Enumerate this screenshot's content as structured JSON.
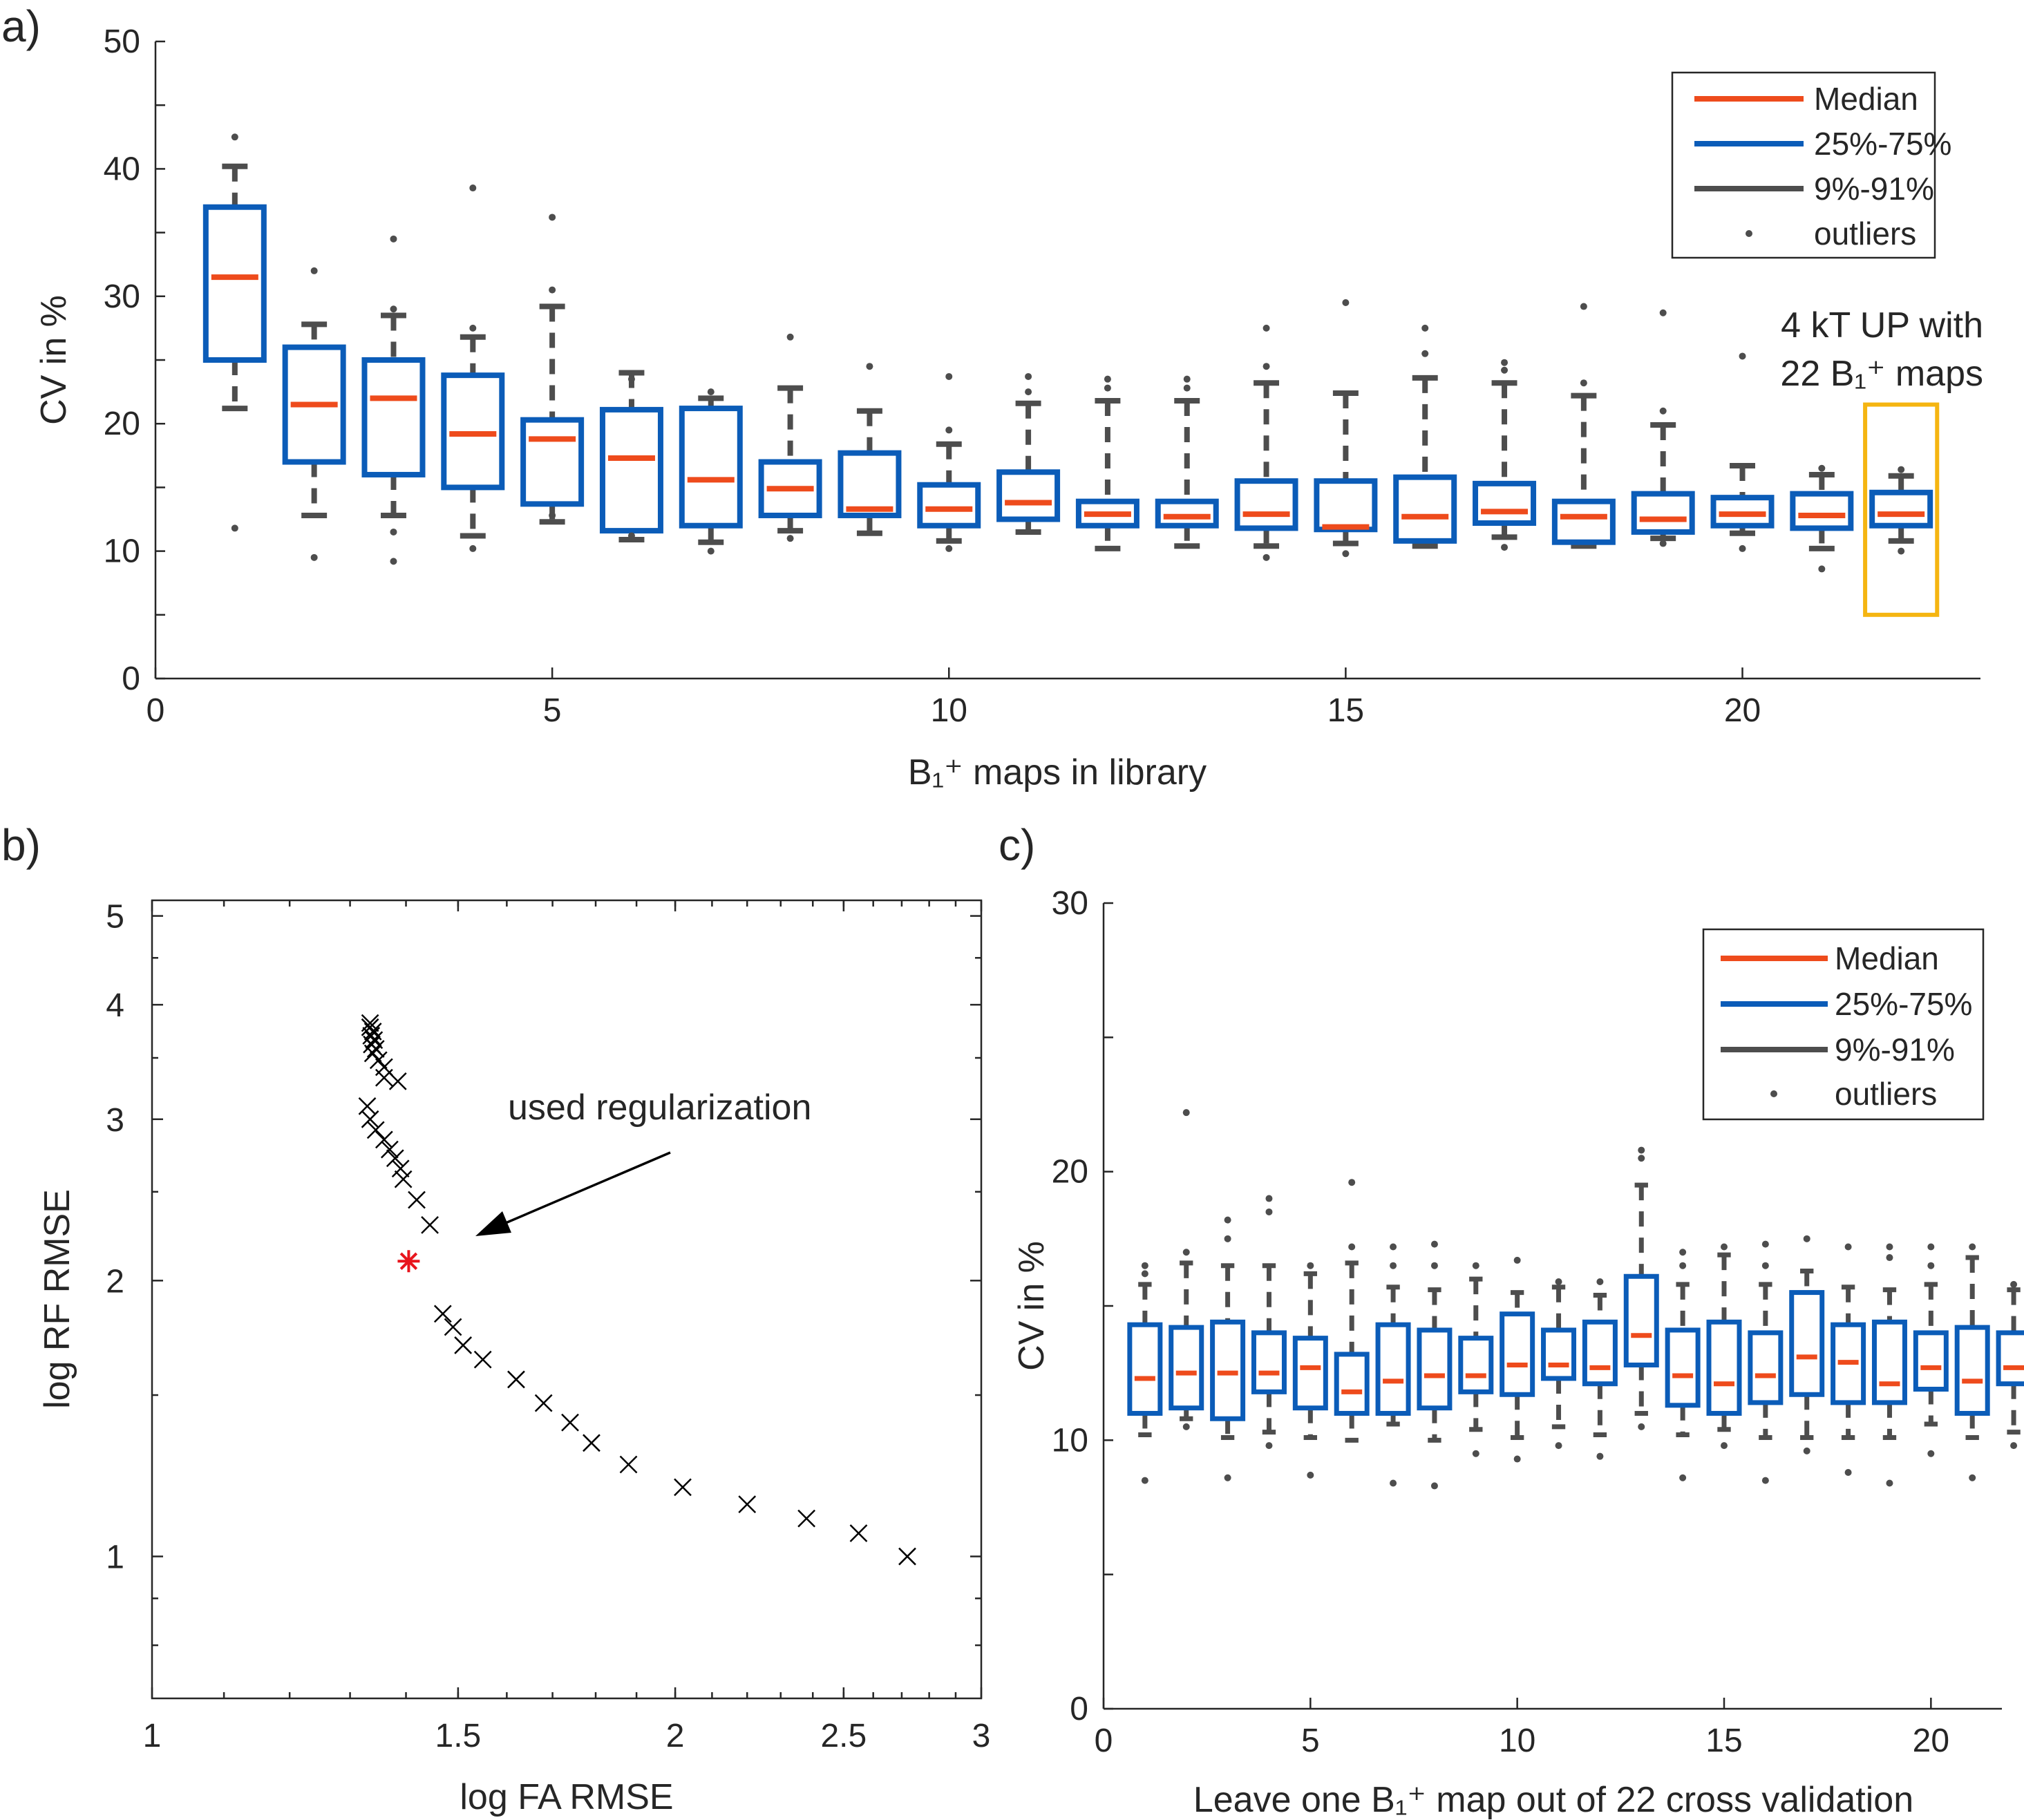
{
  "colors": {
    "median": "#ee4b1c",
    "box": "#0b5cb8",
    "whisker": "#4d4d4d",
    "outlier": "#4d4d4d",
    "highlight": "#f5b511",
    "marker": "#000000",
    "selected": "#e8141c",
    "axis": "#262626"
  },
  "chart_data": [
    {
      "panel": "a)",
      "type": "box",
      "xlabel": "B₁⁺ maps in library",
      "ylabel": "CV in %",
      "xlim": [
        0,
        23
      ],
      "ylim": [
        0,
        50
      ],
      "xticks": [
        0,
        5,
        10,
        15,
        20
      ],
      "yticks": [
        0,
        10,
        20,
        30,
        40,
        50
      ],
      "legend": {
        "position": "top-right",
        "entries": [
          "Median",
          "25%-75%",
          "9%-91%",
          "outliers"
        ]
      },
      "annotation": {
        "text": [
          "4 kT UP with",
          "22 B₁⁺ maps"
        ],
        "highlight_x": 22,
        "highlight_range": [
          5,
          21.5
        ]
      },
      "boxes": [
        {
          "x": 1,
          "q1": 25,
          "median": 31.5,
          "q3": 37,
          "w_low": 21.2,
          "w_high": 40.2,
          "outliers": [
            11.8,
            42.5
          ]
        },
        {
          "x": 2,
          "q1": 17,
          "median": 21.5,
          "q3": 26,
          "w_low": 12.8,
          "w_high": 27.8,
          "outliers": [
            9.5,
            32
          ]
        },
        {
          "x": 3,
          "q1": 16,
          "median": 22,
          "q3": 25,
          "w_low": 12.8,
          "w_high": 28.5,
          "outliers": [
            9.2,
            11.5,
            29,
            34.5
          ]
        },
        {
          "x": 4,
          "q1": 15,
          "median": 19.2,
          "q3": 23.8,
          "w_low": 11.2,
          "w_high": 26.8,
          "outliers": [
            10.2,
            27.5,
            38.5
          ]
        },
        {
          "x": 5,
          "q1": 13.7,
          "median": 18.8,
          "q3": 20.3,
          "w_low": 12.3,
          "w_high": 29.2,
          "outliers": [
            12.8,
            30.5,
            36.2
          ]
        },
        {
          "x": 6,
          "q1": 11.6,
          "median": 17.3,
          "q3": 21.1,
          "w_low": 10.9,
          "w_high": 24,
          "outliers": [
            11.2,
            23.5
          ]
        },
        {
          "x": 7,
          "q1": 12,
          "median": 15.6,
          "q3": 21.2,
          "w_low": 10.7,
          "w_high": 22,
          "outliers": [
            10,
            22.5
          ]
        },
        {
          "x": 8,
          "q1": 12.8,
          "median": 14.9,
          "q3": 17,
          "w_low": 11.6,
          "w_high": 22.8,
          "outliers": [
            11,
            26.8
          ]
        },
        {
          "x": 9,
          "q1": 12.8,
          "median": 13.3,
          "q3": 17.7,
          "w_low": 11.4,
          "w_high": 21,
          "outliers": [
            24.5
          ]
        },
        {
          "x": 10,
          "q1": 12,
          "median": 13.3,
          "q3": 15.2,
          "w_low": 10.8,
          "w_high": 18.4,
          "outliers": [
            10.2,
            19.5,
            23.7
          ]
        },
        {
          "x": 11,
          "q1": 12.5,
          "median": 13.8,
          "q3": 16.2,
          "w_low": 11.5,
          "w_high": 21.6,
          "outliers": [
            22.5,
            23.7
          ]
        },
        {
          "x": 12,
          "q1": 12,
          "median": 12.9,
          "q3": 13.9,
          "w_low": 10.2,
          "w_high": 21.8,
          "outliers": [
            22.8,
            23.5
          ]
        },
        {
          "x": 13,
          "q1": 12,
          "median": 12.7,
          "q3": 13.9,
          "w_low": 10.4,
          "w_high": 21.8,
          "outliers": [
            22.8,
            23.5
          ]
        },
        {
          "x": 14,
          "q1": 11.8,
          "median": 12.9,
          "q3": 15.5,
          "w_low": 10.4,
          "w_high": 23.2,
          "outliers": [
            9.5,
            24.5,
            27.5
          ]
        },
        {
          "x": 15,
          "q1": 11.7,
          "median": 11.9,
          "q3": 15.5,
          "w_low": 10.6,
          "w_high": 22.4,
          "outliers": [
            9.8,
            29.5
          ]
        },
        {
          "x": 16,
          "q1": 10.8,
          "median": 12.7,
          "q3": 15.8,
          "w_low": 10.4,
          "w_high": 23.6,
          "outliers": [
            25.5,
            27.5
          ]
        },
        {
          "x": 17,
          "q1": 12.2,
          "median": 13.1,
          "q3": 15.3,
          "w_low": 11.1,
          "w_high": 23.2,
          "outliers": [
            10.3,
            24.2,
            24.8
          ]
        },
        {
          "x": 18,
          "q1": 10.7,
          "median": 12.7,
          "q3": 13.9,
          "w_low": 10.4,
          "w_high": 22.2,
          "outliers": [
            23.2,
            29.2
          ]
        },
        {
          "x": 19,
          "q1": 11.5,
          "median": 12.5,
          "q3": 14.5,
          "w_low": 11,
          "w_high": 19.9,
          "outliers": [
            10.6,
            21,
            28.7
          ]
        },
        {
          "x": 20,
          "q1": 12,
          "median": 12.9,
          "q3": 14.2,
          "w_low": 11.4,
          "w_high": 16.7,
          "outliers": [
            10.2,
            25.3
          ]
        },
        {
          "x": 21,
          "q1": 11.8,
          "median": 12.8,
          "q3": 14.5,
          "w_low": 10.2,
          "w_high": 16,
          "outliers": [
            8.6,
            16.5
          ]
        },
        {
          "x": 22,
          "q1": 12,
          "median": 12.9,
          "q3": 14.6,
          "w_low": 10.8,
          "w_high": 15.9,
          "outliers": [
            10,
            16.4
          ]
        }
      ]
    },
    {
      "panel": "b)",
      "type": "scatter",
      "xscale": "log",
      "yscale": "log",
      "xlabel": "log FA RMSE",
      "ylabel": "log RF RMSE",
      "xlim": [
        1,
        3
      ],
      "ylim": [
        0.7,
        5.2
      ],
      "xticks": [
        1,
        1.5,
        2,
        2.5,
        3
      ],
      "xtick_labels": [
        "1",
        "1.5",
        "2",
        "2.5",
        "3"
      ],
      "yticks": [
        1,
        2,
        3,
        4,
        5
      ],
      "ytick_labels": [
        "1",
        "2",
        "3",
        "4",
        "5"
      ],
      "annotation": {
        "text": "used regularization",
        "arrow_to": [
          1.54,
          2.22
        ]
      },
      "selected_point": {
        "x": 1.405,
        "y": 2.1
      },
      "points": [
        [
          1.335,
          3.82
        ],
        [
          1.335,
          3.78
        ],
        [
          1.34,
          3.74
        ],
        [
          1.337,
          3.7
        ],
        [
          1.342,
          3.66
        ],
        [
          1.338,
          3.62
        ],
        [
          1.345,
          3.58
        ],
        [
          1.34,
          3.54
        ],
        [
          1.35,
          3.48
        ],
        [
          1.36,
          3.42
        ],
        [
          1.36,
          3.33
        ],
        [
          1.385,
          3.3
        ],
        [
          1.33,
          3.1
        ],
        [
          1.335,
          3.0
        ],
        [
          1.345,
          2.92
        ],
        [
          1.36,
          2.85
        ],
        [
          1.37,
          2.78
        ],
        [
          1.38,
          2.72
        ],
        [
          1.39,
          2.65
        ],
        [
          1.395,
          2.58
        ],
        [
          1.42,
          2.45
        ],
        [
          1.445,
          2.3
        ],
        [
          1.47,
          1.84
        ],
        [
          1.49,
          1.78
        ],
        [
          1.51,
          1.7
        ],
        [
          1.55,
          1.64
        ],
        [
          1.62,
          1.56
        ],
        [
          1.68,
          1.47
        ],
        [
          1.74,
          1.4
        ],
        [
          1.79,
          1.33
        ],
        [
          1.88,
          1.26
        ],
        [
          2.02,
          1.19
        ],
        [
          2.2,
          1.14
        ],
        [
          2.38,
          1.1
        ],
        [
          2.55,
          1.06
        ],
        [
          2.72,
          1.0
        ]
      ]
    },
    {
      "panel": "c)",
      "type": "box",
      "xlabel": "Leave one B₁⁺ map out of 22 cross validation",
      "ylabel": "CV in %",
      "xlim": [
        0,
        22.5
      ],
      "ylim": [
        0,
        30
      ],
      "xticks": [
        0,
        5,
        10,
        15,
        20
      ],
      "yticks": [
        0,
        10,
        20,
        30
      ],
      "legend": {
        "position": "top-right",
        "entries": [
          "Median",
          "25%-75%",
          "9%-91%",
          "outliers"
        ]
      },
      "boxes": [
        {
          "x": 1,
          "q1": 11,
          "median": 12.3,
          "q3": 14.3,
          "w_low": 10.2,
          "w_high": 15.8,
          "outliers": [
            8.5,
            16.2,
            16.5
          ]
        },
        {
          "x": 2,
          "q1": 11.2,
          "median": 12.5,
          "q3": 14.2,
          "w_low": 10.8,
          "w_high": 16.6,
          "outliers": [
            10.5,
            17,
            22.2
          ]
        },
        {
          "x": 3,
          "q1": 10.8,
          "median": 12.5,
          "q3": 14.4,
          "w_low": 10.1,
          "w_high": 16.5,
          "outliers": [
            8.6,
            17.5,
            18.2
          ]
        },
        {
          "x": 4,
          "q1": 11.8,
          "median": 12.5,
          "q3": 14,
          "w_low": 10.3,
          "w_high": 16.5,
          "outliers": [
            9.8,
            18.5,
            19
          ]
        },
        {
          "x": 5,
          "q1": 11.2,
          "median": 12.7,
          "q3": 13.8,
          "w_low": 10.1,
          "w_high": 16.2,
          "outliers": [
            8.7,
            16.5
          ]
        },
        {
          "x": 6,
          "q1": 11,
          "median": 11.8,
          "q3": 13.2,
          "w_low": 10,
          "w_high": 16.6,
          "outliers": [
            17.2,
            19.6
          ]
        },
        {
          "x": 7,
          "q1": 11,
          "median": 12.2,
          "q3": 14.3,
          "w_low": 10.6,
          "w_high": 15.7,
          "outliers": [
            8.4,
            16.5,
            17.2
          ]
        },
        {
          "x": 8,
          "q1": 11.2,
          "median": 12.4,
          "q3": 14.1,
          "w_low": 10,
          "w_high": 15.6,
          "outliers": [
            8.3,
            16.5,
            17.3
          ]
        },
        {
          "x": 9,
          "q1": 11.8,
          "median": 12.4,
          "q3": 13.8,
          "w_low": 10.4,
          "w_high": 16,
          "outliers": [
            9.5,
            16.5
          ]
        },
        {
          "x": 10,
          "q1": 11.7,
          "median": 12.8,
          "q3": 14.7,
          "w_low": 10.1,
          "w_high": 15.5,
          "outliers": [
            9.3,
            16.7
          ]
        },
        {
          "x": 11,
          "q1": 12.3,
          "median": 12.8,
          "q3": 14.1,
          "w_low": 10.5,
          "w_high": 15.7,
          "outliers": [
            9.8,
            15.9
          ]
        },
        {
          "x": 12,
          "q1": 12.1,
          "median": 12.7,
          "q3": 14.4,
          "w_low": 10.2,
          "w_high": 15.4,
          "outliers": [
            9.4,
            15.9
          ]
        },
        {
          "x": 13,
          "q1": 12.8,
          "median": 13.9,
          "q3": 16.1,
          "w_low": 11,
          "w_high": 19.5,
          "outliers": [
            10.5,
            20.5,
            20.8
          ]
        },
        {
          "x": 14,
          "q1": 11.3,
          "median": 12.4,
          "q3": 14.1,
          "w_low": 10.2,
          "w_high": 15.8,
          "outliers": [
            8.6,
            16.5,
            17
          ]
        },
        {
          "x": 15,
          "q1": 11,
          "median": 12.1,
          "q3": 14.4,
          "w_low": 10.4,
          "w_high": 16.9,
          "outliers": [
            9.8,
            17.2
          ]
        },
        {
          "x": 16,
          "q1": 11.4,
          "median": 12.4,
          "q3": 14,
          "w_low": 10.1,
          "w_high": 15.8,
          "outliers": [
            8.5,
            16.5,
            17.3
          ]
        },
        {
          "x": 17,
          "q1": 11.7,
          "median": 13.1,
          "q3": 15.5,
          "w_low": 10.1,
          "w_high": 16.3,
          "outliers": [
            9.6,
            17.5
          ]
        },
        {
          "x": 18,
          "q1": 11.4,
          "median": 12.9,
          "q3": 14.3,
          "w_low": 10.1,
          "w_high": 15.7,
          "outliers": [
            8.8,
            17.2
          ]
        },
        {
          "x": 19,
          "q1": 11.4,
          "median": 12.1,
          "q3": 14.4,
          "w_low": 10.1,
          "w_high": 15.6,
          "outliers": [
            8.4,
            16.8,
            17.2
          ]
        },
        {
          "x": 20,
          "q1": 11.9,
          "median": 12.7,
          "q3": 14,
          "w_low": 10.6,
          "w_high": 15.8,
          "outliers": [
            9.5,
            16.5,
            17.2
          ]
        },
        {
          "x": 21,
          "q1": 11,
          "median": 12.2,
          "q3": 14.2,
          "w_low": 10.1,
          "w_high": 16.8,
          "outliers": [
            8.6,
            17.2
          ]
        },
        {
          "x": 22,
          "q1": 12.1,
          "median": 12.7,
          "q3": 14,
          "w_low": 10.3,
          "w_high": 15.6,
          "outliers": [
            9.8,
            15.8
          ]
        }
      ]
    }
  ]
}
